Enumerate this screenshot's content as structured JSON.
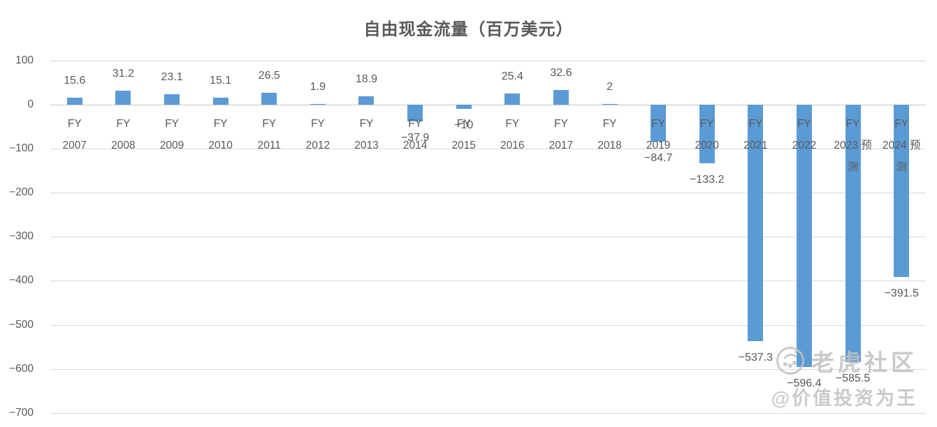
{
  "chart_data": {
    "type": "bar",
    "title": "自由现金流量（百万美元）",
    "xlabel": "",
    "ylabel": "",
    "ylim": [
      -700,
      100
    ],
    "grid": true,
    "bar_color": "#5b9bd5",
    "grid_color": "#d9d9d9",
    "text_color": "#595959",
    "y_ticks": [
      100,
      0,
      -100,
      -200,
      -300,
      -400,
      -500,
      -600,
      -700
    ],
    "y_tick_labels": [
      "100",
      "0",
      "−100",
      "−200",
      "−300",
      "−400",
      "−500",
      "−600",
      "−700"
    ],
    "categories": [
      "FY 2007",
      "FY 2008",
      "FY 2009",
      "FY 2010",
      "FY 2011",
      "FY 2012",
      "FY 2013",
      "FY 2014",
      "FY 2015",
      "FY 2016",
      "FY 2017",
      "FY 2018",
      "FY 2019",
      "FY 2020",
      "FY 2021",
      "FY 2022",
      "FY 2023 预测",
      "FY 2024 预测"
    ],
    "category_label_lines": [
      [
        "FY",
        "2007"
      ],
      [
        "FY",
        "2008"
      ],
      [
        "FY",
        "2009"
      ],
      [
        "FY",
        "2010"
      ],
      [
        "FY",
        "2011"
      ],
      [
        "FY",
        "2012"
      ],
      [
        "FY",
        "2013"
      ],
      [
        "FY",
        "2014"
      ],
      [
        "FY",
        "2015"
      ],
      [
        "FY",
        "2016"
      ],
      [
        "FY",
        "2017"
      ],
      [
        "FY",
        "2018"
      ],
      [
        "FY",
        "2019"
      ],
      [
        "FY",
        "2020"
      ],
      [
        "FY",
        "2021"
      ],
      [
        "FY",
        "2022"
      ],
      [
        "FY",
        "2023 预",
        "测"
      ],
      [
        "FY",
        "2024 预",
        "测"
      ]
    ],
    "values": [
      15.6,
      31.2,
      23.1,
      15.1,
      26.5,
      1.9,
      18.9,
      -37.9,
      -10,
      25.4,
      32.6,
      2,
      -84.7,
      -133.2,
      -537.3,
      -596.4,
      -585.5,
      -391.5
    ],
    "value_labels": [
      "15.6",
      "31.2",
      "23.1",
      "15.1",
      "26.5",
      "1.9",
      "18.9",
      "−37.9",
      "−10",
      "25.4",
      "32.6",
      "2",
      "−84.7",
      "−133.2",
      "−537.3",
      "−596.4",
      "−585.5",
      "−391.5"
    ],
    "legend": null
  },
  "watermark": {
    "logo": "tiger-logo-icon",
    "community": "老虎社区",
    "author": "@价值投资为王"
  }
}
